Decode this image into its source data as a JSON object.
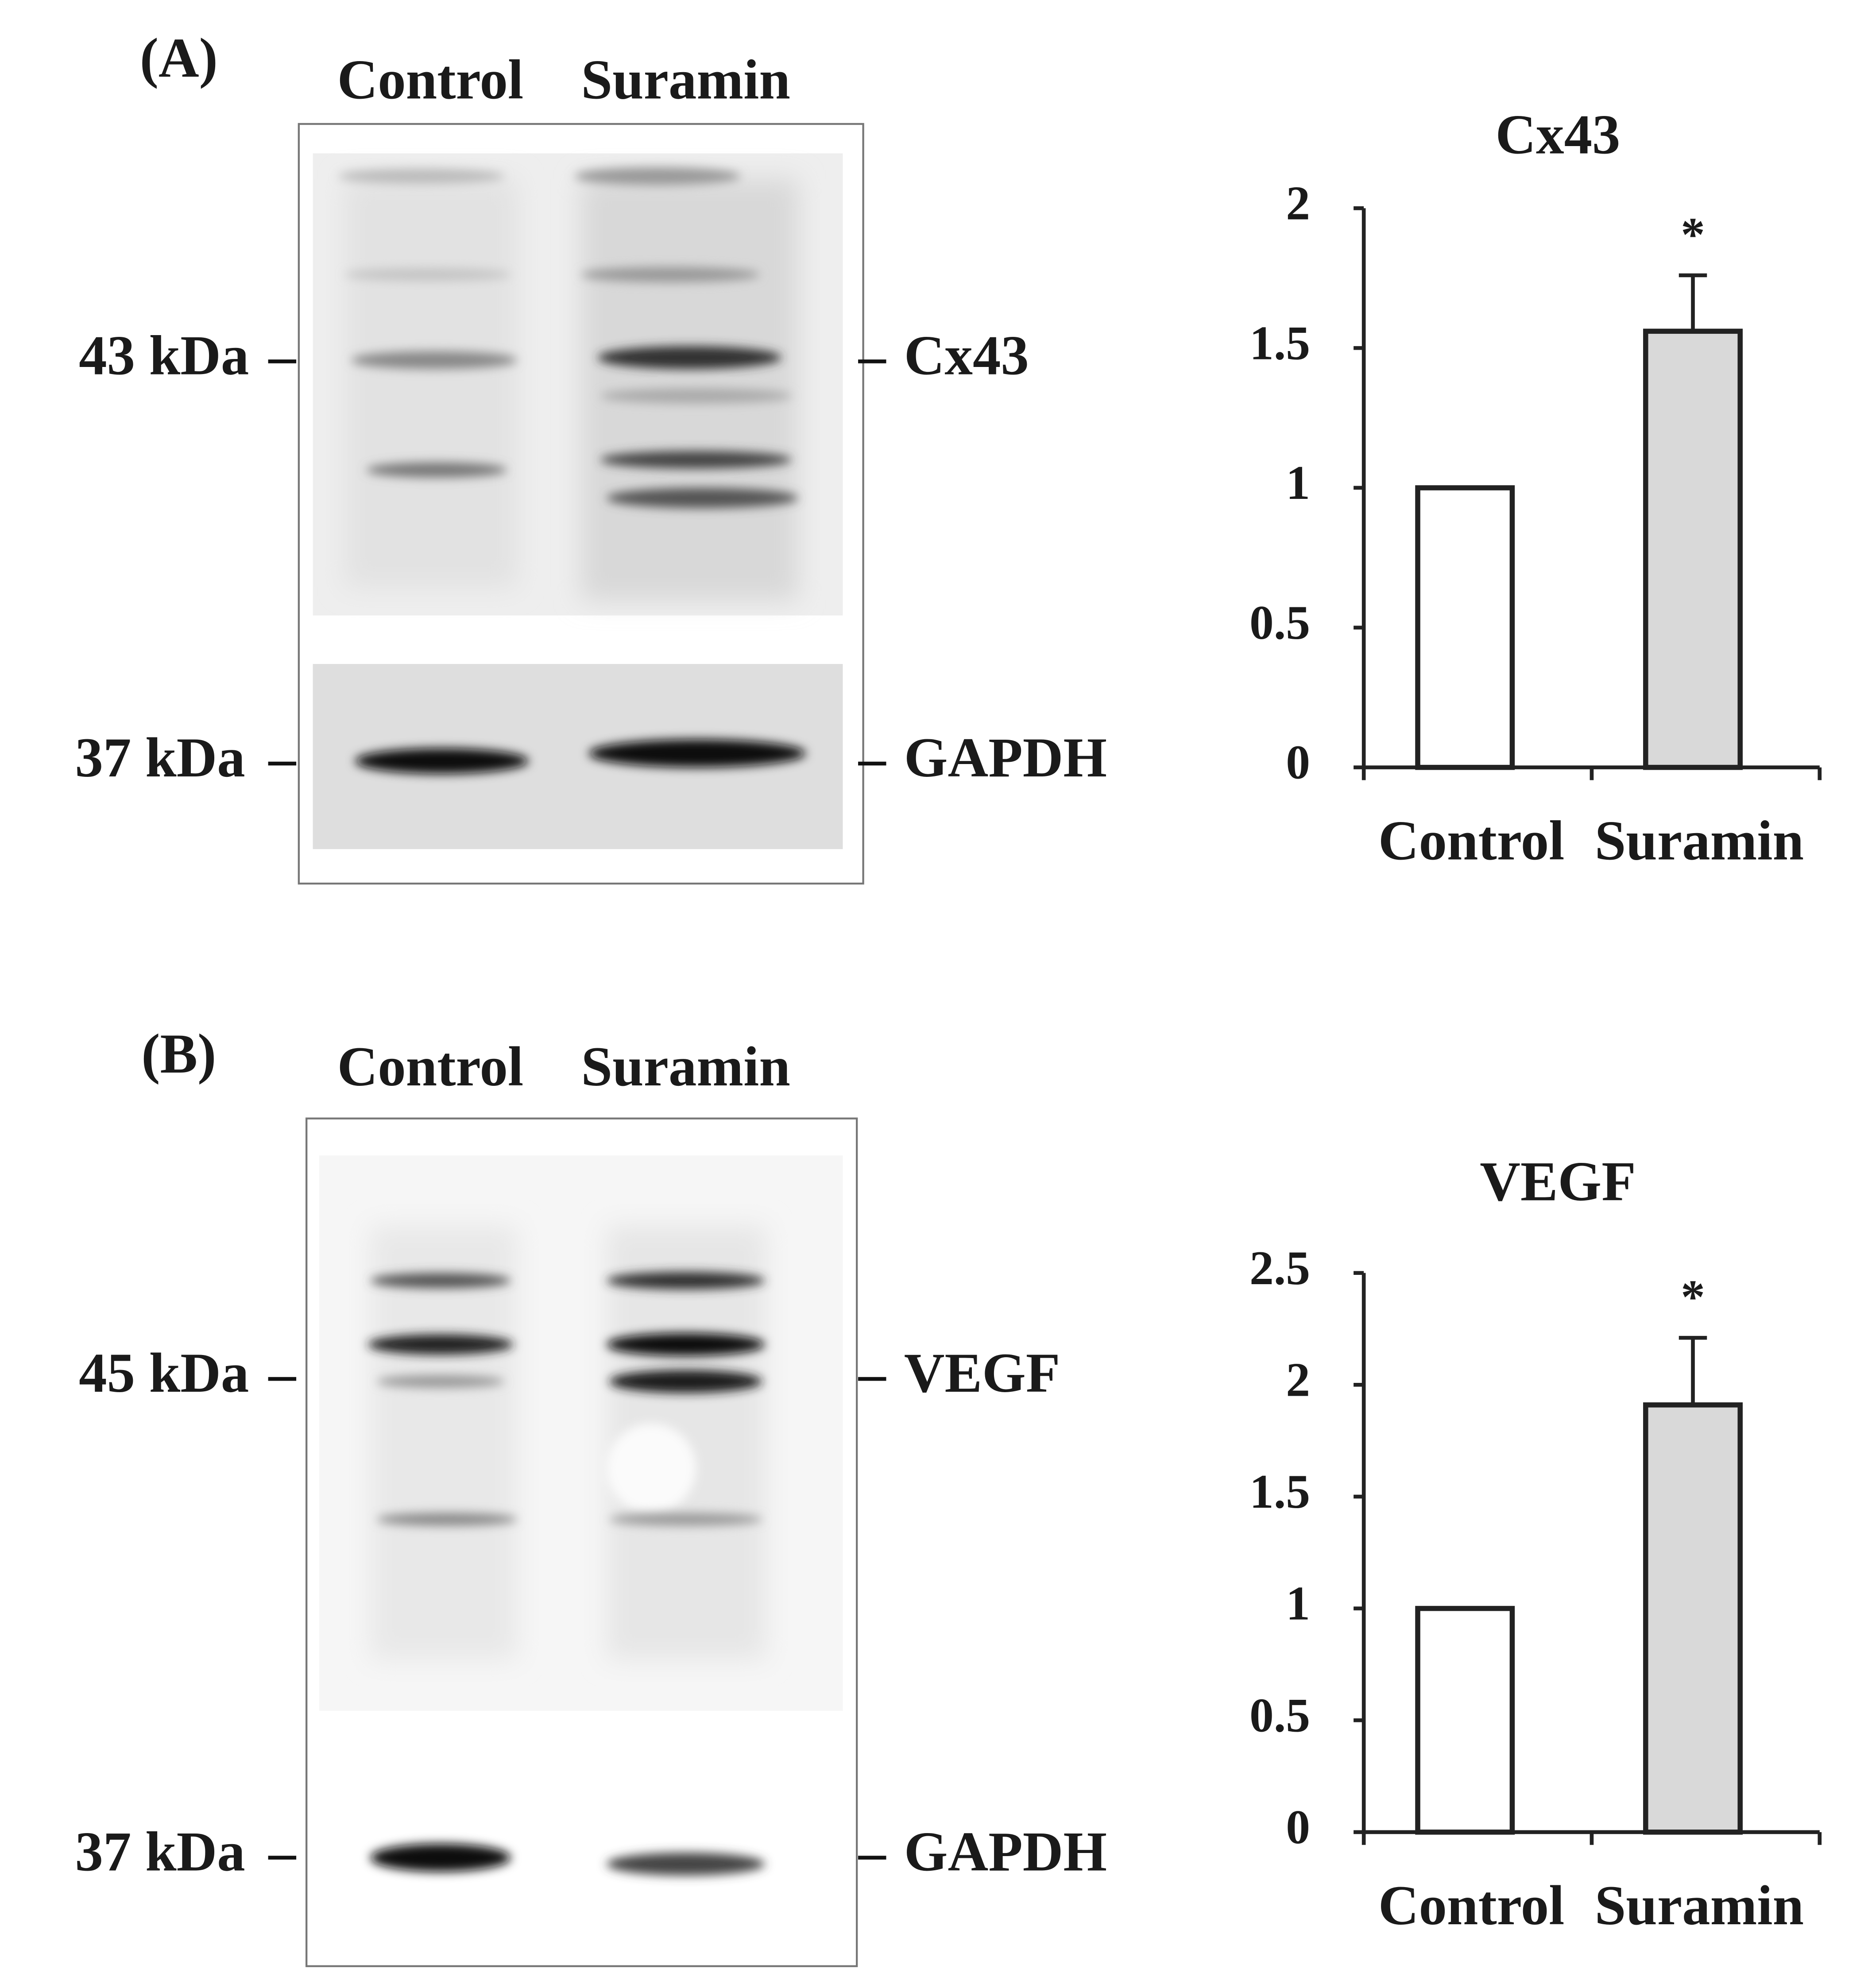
{
  "chart_data": [
    {
      "type": "bar",
      "title": "Cx43",
      "categories": [
        "Control",
        "Suramin"
      ],
      "values": [
        1,
        1.56
      ],
      "errors": [
        null,
        0.2
      ],
      "colors": [
        "#ffffff",
        "#d9d9d9"
      ],
      "annotations": [
        null,
        "*"
      ],
      "ylim": [
        0,
        2
      ],
      "yticks": [
        0,
        0.5,
        1,
        1.5,
        2
      ]
    },
    {
      "type": "bar",
      "title": "VEGF",
      "categories": [
        "Control",
        "Suramin"
      ],
      "values": [
        1,
        1.91
      ],
      "errors": [
        null,
        0.3
      ],
      "colors": [
        "#ffffff",
        "#d9d9d9"
      ],
      "annotations": [
        null,
        "*"
      ],
      "ylim": [
        0,
        2.5
      ],
      "yticks": [
        0,
        0.5,
        1,
        1.5,
        2,
        2.5
      ]
    }
  ],
  "blots": [
    {
      "label": "(A)",
      "lanes": [
        "Control",
        "Suramin"
      ],
      "markers": [
        {
          "size": "43 kDa",
          "protein": "Cx43"
        },
        {
          "size": "37 kDa",
          "protein": "GAPDH"
        }
      ]
    },
    {
      "label": "(B)",
      "lanes": [
        "Control",
        "Suramin"
      ],
      "markers": [
        {
          "size": "45 kDa",
          "protein": "VEGF"
        },
        {
          "size": "37 kDa",
          "protein": "GAPDH"
        }
      ]
    }
  ]
}
